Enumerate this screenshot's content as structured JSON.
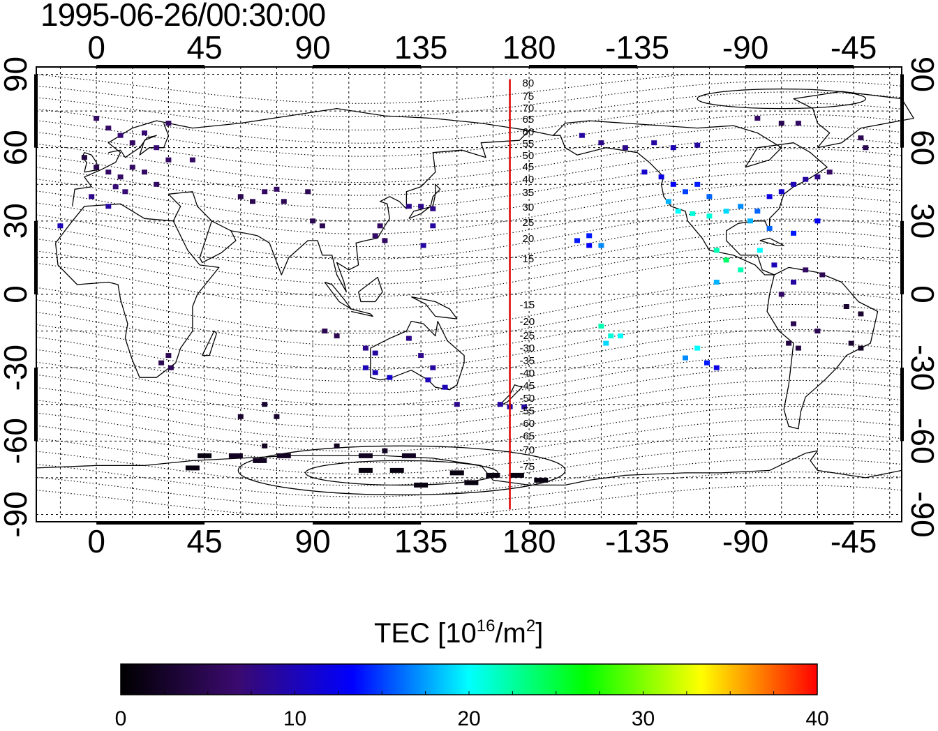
{
  "title": "1995-06-26/00:30:00",
  "map": {
    "lon_ticks_top": [
      "0",
      "45",
      "90",
      "135",
      "180",
      "-135",
      "-90",
      "-45"
    ],
    "lon_ticks_bottom": [
      "0",
      "45",
      "90",
      "135",
      "180",
      "-135",
      "-90",
      "-45"
    ],
    "lat_ticks": [
      "90",
      "60",
      "30",
      "0",
      "-30",
      "-60",
      "-90"
    ],
    "contour_labels_north": [
      "80",
      "75",
      "70",
      "65",
      "60",
      "55",
      "50",
      "45",
      "40",
      "35",
      "30",
      "25",
      "20",
      "15"
    ],
    "contour_labels_south": [
      "-15",
      "-20",
      "-25",
      "-30",
      "-35",
      "-40",
      "-45",
      "-50",
      "-55",
      "-60",
      "-65",
      "-70",
      "-75"
    ],
    "lon_range": [
      -25,
      335
    ],
    "lat_range": [
      -93,
      93
    ],
    "marker_meridian_lon": 172,
    "marker_meridian_color": "#dd0000"
  },
  "colorbar": {
    "label_main": "TEC  [10",
    "label_exp1": "16",
    "label_mid": "/m",
    "label_exp2": "2",
    "label_end": "]",
    "ticks": [
      "0",
      "10",
      "20",
      "30",
      "40"
    ],
    "range": [
      0,
      40
    ],
    "stops": [
      "#000000",
      "#3a0a6e",
      "#0000ff",
      "#00ffff",
      "#00ff00",
      "#ffff00",
      "#ff0000"
    ]
  },
  "tec_observations": [
    {
      "lon": 0,
      "lat": 72,
      "tec": 6
    },
    {
      "lon": 5,
      "lat": 68,
      "tec": 6
    },
    {
      "lon": 10,
      "lat": 65,
      "tec": 7
    },
    {
      "lon": 15,
      "lat": 62,
      "tec": 6
    },
    {
      "lon": 20,
      "lat": 66,
      "tec": 7
    },
    {
      "lon": 25,
      "lat": 60,
      "tec": 7
    },
    {
      "lon": 30,
      "lat": 70,
      "tec": 6
    },
    {
      "lon": -5,
      "lat": 56,
      "tec": 4
    },
    {
      "lon": 0,
      "lat": 52,
      "tec": 5
    },
    {
      "lon": 5,
      "lat": 50,
      "tec": 6
    },
    {
      "lon": 10,
      "lat": 48,
      "tec": 6
    },
    {
      "lon": 15,
      "lat": 52,
      "tec": 6
    },
    {
      "lon": 20,
      "lat": 50,
      "tec": 6
    },
    {
      "lon": 8,
      "lat": 44,
      "tec": 7
    },
    {
      "lon": 12,
      "lat": 42,
      "tec": 7
    },
    {
      "lon": 25,
      "lat": 45,
      "tec": 6
    },
    {
      "lon": 30,
      "lat": 55,
      "tec": 6
    },
    {
      "lon": 40,
      "lat": 55,
      "tec": 6
    },
    {
      "lon": -2,
      "lat": 40,
      "tec": 8
    },
    {
      "lon": 5,
      "lat": 36,
      "tec": 9
    },
    {
      "lon": -15,
      "lat": 28,
      "tec": 10
    },
    {
      "lon": 60,
      "lat": 40,
      "tec": 5
    },
    {
      "lon": 65,
      "lat": 38,
      "tec": 5
    },
    {
      "lon": 70,
      "lat": 42,
      "tec": 6
    },
    {
      "lon": 75,
      "lat": 43,
      "tec": 6
    },
    {
      "lon": 78,
      "lat": 38,
      "tec": 5
    },
    {
      "lon": 88,
      "lat": 42,
      "tec": 5
    },
    {
      "lon": 90,
      "lat": 30,
      "tec": 5
    },
    {
      "lon": 94,
      "lat": 28,
      "tec": 5
    },
    {
      "lon": 118,
      "lat": 28,
      "tec": 6
    },
    {
      "lon": 116,
      "lat": 24,
      "tec": 6
    },
    {
      "lon": 120,
      "lat": 22,
      "tec": 6
    },
    {
      "lon": 130,
      "lat": 36,
      "tec": 8
    },
    {
      "lon": 135,
      "lat": 36,
      "tec": 8
    },
    {
      "lon": 140,
      "lat": 35,
      "tec": 8
    },
    {
      "lon": 140,
      "lat": 28,
      "tec": 9
    },
    {
      "lon": 136,
      "lat": 20,
      "tec": 9
    },
    {
      "lon": 95,
      "lat": -15,
      "tec": 5
    },
    {
      "lon": 100,
      "lat": -17,
      "tec": 5
    },
    {
      "lon": 112,
      "lat": -22,
      "tec": 8
    },
    {
      "lon": 116,
      "lat": -24,
      "tec": 9
    },
    {
      "lon": 112,
      "lat": -30,
      "tec": 10
    },
    {
      "lon": 116,
      "lat": -32,
      "tec": 10
    },
    {
      "lon": 122,
      "lat": -34,
      "tec": 11
    },
    {
      "lon": 130,
      "lat": -18,
      "tec": 8
    },
    {
      "lon": 135,
      "lat": -25,
      "tec": 8
    },
    {
      "lon": 140,
      "lat": -30,
      "tec": 9
    },
    {
      "lon": 138,
      "lat": -35,
      "tec": 10
    },
    {
      "lon": 145,
      "lat": -38,
      "tec": 10
    },
    {
      "lon": 150,
      "lat": -45,
      "tec": 8
    },
    {
      "lon": 168,
      "lat": -45,
      "tec": 9
    },
    {
      "lon": 172,
      "lat": -46,
      "tec": 9
    },
    {
      "lon": 178,
      "lat": -46,
      "tec": 9
    },
    {
      "lon": 30,
      "lat": -25,
      "tec": 5
    },
    {
      "lon": 27,
      "lat": -28,
      "tec": 5
    },
    {
      "lon": 31,
      "lat": -30,
      "tec": 5
    },
    {
      "lon": 70,
      "lat": -45,
      "tec": 3
    },
    {
      "lon": 75,
      "lat": -50,
      "tec": 3
    },
    {
      "lon": 60,
      "lat": -50,
      "tec": 3
    },
    {
      "lon": 70,
      "lat": -62,
      "tec": 2
    },
    {
      "lon": 58,
      "lat": -66,
      "tec": 2
    },
    {
      "lon": 68,
      "lat": -68,
      "tec": 2
    },
    {
      "lon": 78,
      "lat": -66,
      "tec": 2
    },
    {
      "lon": 100,
      "lat": -62,
      "tec": 2
    },
    {
      "lon": 112,
      "lat": -66,
      "tec": 2
    },
    {
      "lon": 120,
      "lat": -64,
      "tec": 2
    },
    {
      "lon": 130,
      "lat": -66,
      "tec": 2
    },
    {
      "lon": 112,
      "lat": -72,
      "tec": 1
    },
    {
      "lon": 125,
      "lat": -72,
      "tec": 1
    },
    {
      "lon": 135,
      "lat": -78,
      "tec": 1
    },
    {
      "lon": 150,
      "lat": -73,
      "tec": 1
    },
    {
      "lon": 156,
      "lat": -77,
      "tec": 1
    },
    {
      "lon": 165,
      "lat": -74,
      "tec": 1
    },
    {
      "lon": 175,
      "lat": -74,
      "tec": 1
    },
    {
      "lon": 185,
      "lat": -76,
      "tec": 1
    },
    {
      "lon": 40,
      "lat": -71,
      "tec": 1
    },
    {
      "lon": 45,
      "lat": -66,
      "tec": 1
    },
    {
      "lon": 202,
      "lat": 65,
      "tec": 9
    },
    {
      "lon": 210,
      "lat": 62,
      "tec": 8
    },
    {
      "lon": 220,
      "lat": 60,
      "tec": 8
    },
    {
      "lon": 232,
      "lat": 62,
      "tec": 9
    },
    {
      "lon": 240,
      "lat": 60,
      "tec": 10
    },
    {
      "lon": 250,
      "lat": 61,
      "tec": 9
    },
    {
      "lon": 228,
      "lat": 50,
      "tec": 11
    },
    {
      "lon": 235,
      "lat": 48,
      "tec": 12
    },
    {
      "lon": 240,
      "lat": 45,
      "tec": 13
    },
    {
      "lon": 245,
      "lat": 42,
      "tec": 15
    },
    {
      "lon": 250,
      "lat": 45,
      "tec": 14
    },
    {
      "lon": 255,
      "lat": 40,
      "tec": 16
    },
    {
      "lon": 238,
      "lat": 38,
      "tec": 18
    },
    {
      "lon": 242,
      "lat": 34,
      "tec": 20
    },
    {
      "lon": 248,
      "lat": 33,
      "tec": 21
    },
    {
      "lon": 255,
      "lat": 32,
      "tec": 21
    },
    {
      "lon": 262,
      "lat": 34,
      "tec": 19
    },
    {
      "lon": 268,
      "lat": 36,
      "tec": 17
    },
    {
      "lon": 275,
      "lat": 34,
      "tec": 16
    },
    {
      "lon": 280,
      "lat": 40,
      "tec": 12
    },
    {
      "lon": 285,
      "lat": 42,
      "tec": 11
    },
    {
      "lon": 290,
      "lat": 45,
      "tec": 10
    },
    {
      "lon": 295,
      "lat": 47,
      "tec": 9
    },
    {
      "lon": 300,
      "lat": 48,
      "tec": 8
    },
    {
      "lon": 305,
      "lat": 50,
      "tec": 6
    },
    {
      "lon": 272,
      "lat": 30,
      "tec": 18
    },
    {
      "lon": 280,
      "lat": 27,
      "tec": 16
    },
    {
      "lon": 290,
      "lat": 25,
      "tec": 14
    },
    {
      "lon": 300,
      "lat": 30,
      "tec": 13
    },
    {
      "lon": 258,
      "lat": 18,
      "tec": 22
    },
    {
      "lon": 262,
      "lat": 14,
      "tec": 24
    },
    {
      "lon": 268,
      "lat": 10,
      "tec": 22
    },
    {
      "lon": 276,
      "lat": 18,
      "tec": 20
    },
    {
      "lon": 258,
      "lat": 5,
      "tec": 18
    },
    {
      "lon": 282,
      "lat": 12,
      "tec": 10
    },
    {
      "lon": 290,
      "lat": 5,
      "tec": 9
    },
    {
      "lon": 295,
      "lat": 10,
      "tec": 6
    },
    {
      "lon": 302,
      "lat": 8,
      "tec": 5
    },
    {
      "lon": 285,
      "lat": 0,
      "tec": 6
    },
    {
      "lon": 290,
      "lat": -12,
      "tec": 5
    },
    {
      "lon": 288,
      "lat": -20,
      "tec": 4
    },
    {
      "lon": 292,
      "lat": -22,
      "tec": 4
    },
    {
      "lon": 300,
      "lat": -15,
      "tec": 5
    },
    {
      "lon": 312,
      "lat": -5,
      "tec": 3
    },
    {
      "lon": 318,
      "lat": -8,
      "tec": 3
    },
    {
      "lon": 318,
      "lat": -22,
      "tec": 2
    },
    {
      "lon": 314,
      "lat": -20,
      "tec": 3
    },
    {
      "lon": 200,
      "lat": 22,
      "tec": 14
    },
    {
      "lon": 205,
      "lat": 20,
      "tec": 13
    },
    {
      "lon": 205,
      "lat": 24,
      "tec": 14
    },
    {
      "lon": 210,
      "lat": 20,
      "tec": 17
    },
    {
      "lon": 210,
      "lat": -13,
      "tec": 22
    },
    {
      "lon": 214,
      "lat": -17,
      "tec": 21
    },
    {
      "lon": 218,
      "lat": -17,
      "tec": 20
    },
    {
      "lon": 212,
      "lat": -20,
      "tec": 19
    },
    {
      "lon": 250,
      "lat": -22,
      "tec": 20
    },
    {
      "lon": 245,
      "lat": -26,
      "tec": 17
    },
    {
      "lon": 254,
      "lat": -28,
      "tec": 14
    },
    {
      "lon": 258,
      "lat": -30,
      "tec": 12
    },
    {
      "lon": 320,
      "lat": 60,
      "tec": 5
    },
    {
      "lon": 318,
      "lat": 64,
      "tec": 5
    },
    {
      "lon": 285,
      "lat": 70,
      "tec": 5
    },
    {
      "lon": 275,
      "lat": 72,
      "tec": 6
    },
    {
      "lon": 292,
      "lat": 70,
      "tec": 6
    }
  ]
}
